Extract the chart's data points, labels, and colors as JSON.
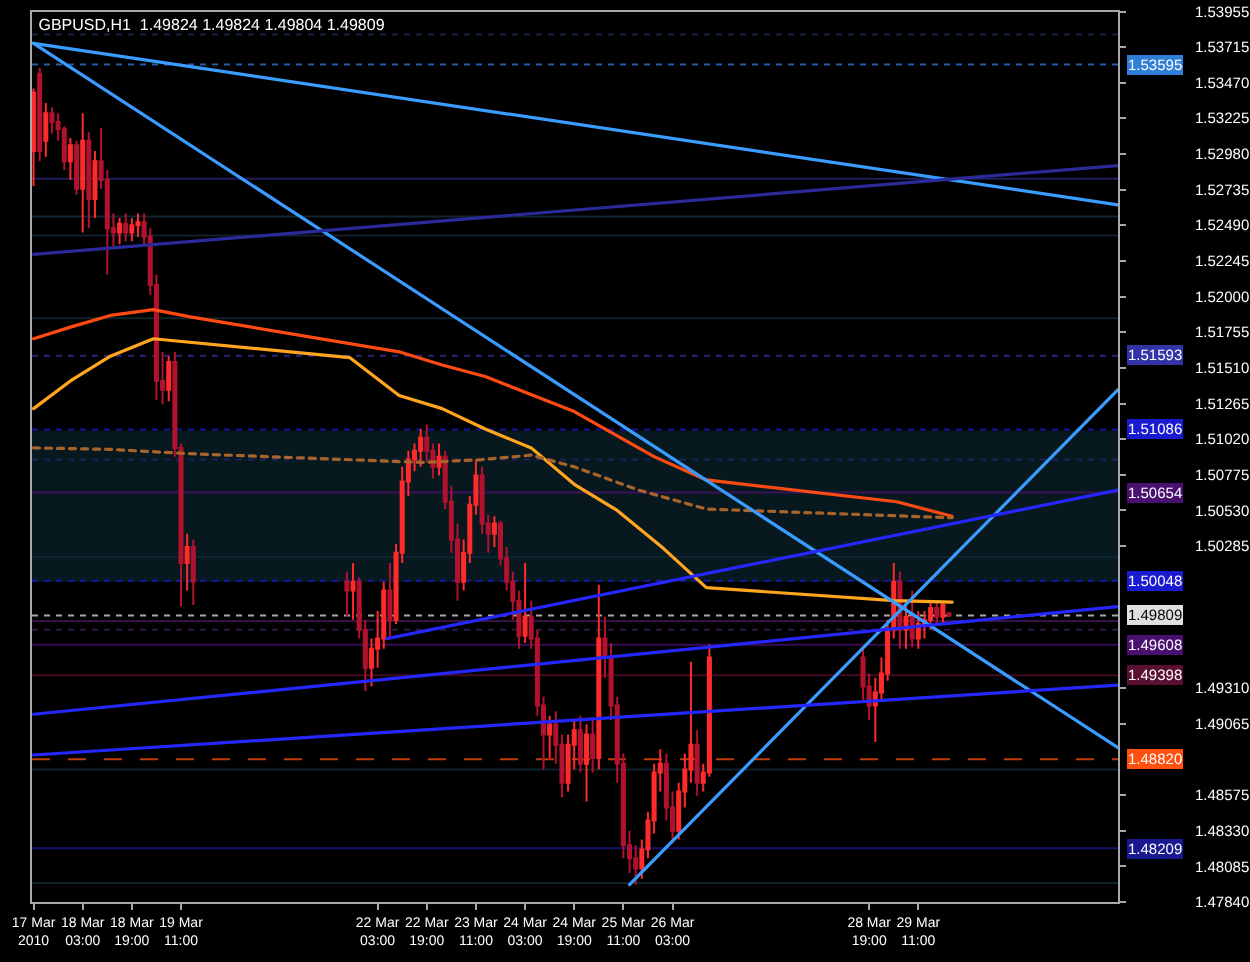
{
  "chart_data": {
    "type": "candlestick",
    "title": "GBPUSD,H1  1.49824 1.49824 1.49804 1.49809",
    "x": [
      "2010-03-17T11:00",
      "2010-03-17T13:00",
      "2010-03-17T15:00",
      "2010-03-17T17:00",
      "2010-03-17T19:00",
      "2010-03-17T21:00",
      "2010-03-17T23:00",
      "2010-03-18T01:00",
      "2010-03-18T03:00",
      "2010-03-18T05:00",
      "2010-03-18T07:00",
      "2010-03-18T09:00",
      "2010-03-18T11:00",
      "2010-03-18T13:00",
      "2010-03-18T15:00",
      "2010-03-18T17:00",
      "2010-03-18T19:00",
      "2010-03-18T21:00",
      "2010-03-18T23:00",
      "2010-03-19T01:00",
      "2010-03-19T03:00",
      "2010-03-19T05:00",
      "2010-03-19T07:00",
      "2010-03-19T09:00",
      "2010-03-19T11:00",
      "2010-03-19T13:00",
      "2010-03-19T15:00",
      "2010-03-21T17:00",
      "2010-03-21T19:00",
      "2010-03-21T21:00",
      "2010-03-21T23:00",
      "2010-03-22T01:00",
      "2010-03-22T03:00",
      "2010-03-22T05:00",
      "2010-03-22T07:00",
      "2010-03-22T09:00",
      "2010-03-22T11:00",
      "2010-03-22T13:00",
      "2010-03-22T15:00",
      "2010-03-22T17:00",
      "2010-03-22T19:00",
      "2010-03-22T21:00",
      "2010-03-22T23:00",
      "2010-03-23T01:00",
      "2010-03-23T03:00",
      "2010-03-23T05:00",
      "2010-03-23T07:00",
      "2010-03-23T09:00",
      "2010-03-23T11:00",
      "2010-03-23T13:00",
      "2010-03-23T15:00",
      "2010-03-23T17:00",
      "2010-03-23T19:00",
      "2010-03-23T21:00",
      "2010-03-23T23:00",
      "2010-03-24T01:00",
      "2010-03-24T03:00",
      "2010-03-24T05:00",
      "2010-03-24T07:00",
      "2010-03-24T09:00",
      "2010-03-24T11:00",
      "2010-03-24T13:00",
      "2010-03-24T15:00",
      "2010-03-24T17:00",
      "2010-03-24T19:00",
      "2010-03-24T21:00",
      "2010-03-24T23:00",
      "2010-03-25T01:00",
      "2010-03-25T03:00",
      "2010-03-25T05:00",
      "2010-03-25T07:00",
      "2010-03-25T09:00",
      "2010-03-25T11:00",
      "2010-03-25T13:00",
      "2010-03-25T15:00",
      "2010-03-25T17:00",
      "2010-03-25T19:00",
      "2010-03-25T21:00",
      "2010-03-25T23:00",
      "2010-03-26T01:00",
      "2010-03-26T03:00",
      "2010-03-26T05:00",
      "2010-03-26T07:00",
      "2010-03-26T09:00",
      "2010-03-26T11:00",
      "2010-03-26T13:00",
      "2010-03-26T15:00",
      "2010-03-28T17:00",
      "2010-03-28T19:00",
      "2010-03-28T21:00",
      "2010-03-28T23:00",
      "2010-03-29T01:00",
      "2010-03-29T03:00",
      "2010-03-29T05:00",
      "2010-03-29T07:00",
      "2010-03-29T09:00",
      "2010-03-29T11:00",
      "2010-03-29T13:00",
      "2010-03-29T15:00",
      "2010-03-29T17:00",
      "2010-03-29T19:00",
      "2010-03-29T21:00"
    ],
    "ohlc": [
      [
        1.53,
        1.5343,
        1.5276,
        1.534
      ],
      [
        1.5353,
        1.5357,
        1.5293,
        1.53
      ],
      [
        1.5307,
        1.5333,
        1.5296,
        1.5326
      ],
      [
        1.5326,
        1.533,
        1.5312,
        1.532
      ],
      [
        1.532,
        1.5326,
        1.5307,
        1.5315
      ],
      [
        1.5315,
        1.5317,
        1.5287,
        1.5293
      ],
      [
        1.5293,
        1.5309,
        1.528,
        1.5304
      ],
      [
        1.5304,
        1.5307,
        1.527,
        1.5274
      ],
      [
        1.5274,
        1.5326,
        1.5244,
        1.5307
      ],
      [
        1.5307,
        1.5313,
        1.5247,
        1.5267
      ],
      [
        1.5267,
        1.53,
        1.5254,
        1.5293
      ],
      [
        1.5293,
        1.5316,
        1.5274,
        1.528
      ],
      [
        1.528,
        1.5287,
        1.5215,
        1.5247
      ],
      [
        1.5247,
        1.5257,
        1.5234,
        1.5244
      ],
      [
        1.5244,
        1.5254,
        1.5236,
        1.525
      ],
      [
        1.525,
        1.5257,
        1.5238,
        1.5244
      ],
      [
        1.5244,
        1.5254,
        1.5238,
        1.5249
      ],
      [
        1.5249,
        1.5257,
        1.5241,
        1.5251
      ],
      [
        1.5251,
        1.5257,
        1.5236,
        1.5241
      ],
      [
        1.5241,
        1.5247,
        1.5201,
        1.5208
      ],
      [
        1.5208,
        1.5215,
        1.5129,
        1.5142
      ],
      [
        1.5142,
        1.5162,
        1.5126,
        1.5136
      ],
      [
        1.5136,
        1.5159,
        1.5128,
        1.5155
      ],
      [
        1.5155,
        1.5162,
        1.509,
        1.5096
      ],
      [
        1.5096,
        1.5099,
        1.4987,
        1.5017
      ],
      [
        1.5017,
        1.5037,
        1.4998,
        1.5028
      ],
      [
        1.5028,
        1.5033,
        1.4988,
        1.5004
      ],
      [
        1.5004,
        1.5011,
        1.498,
        1.4998
      ],
      [
        1.4998,
        1.5017,
        1.4978,
        1.5004
      ],
      [
        1.5004,
        1.5007,
        1.4965,
        1.4971
      ],
      [
        1.4971,
        1.4978,
        1.4929,
        1.4945
      ],
      [
        1.4945,
        1.4965,
        1.4932,
        1.4958
      ],
      [
        1.4958,
        1.4984,
        1.4945,
        1.4965
      ],
      [
        1.4965,
        1.5004,
        1.4958,
        1.4998
      ],
      [
        1.4998,
        1.5017,
        1.4965,
        1.4978
      ],
      [
        1.4978,
        1.503,
        1.4975,
        1.5024
      ],
      [
        1.5024,
        1.5083,
        1.5017,
        1.5073
      ],
      [
        1.5073,
        1.5094,
        1.5063,
        1.5088
      ],
      [
        1.5088,
        1.5099,
        1.508,
        1.5094
      ],
      [
        1.5094,
        1.5109,
        1.5083,
        1.5103
      ],
      [
        1.5103,
        1.5112,
        1.5086,
        1.5094
      ],
      [
        1.5094,
        1.5099,
        1.5075,
        1.5083
      ],
      [
        1.5083,
        1.5099,
        1.5077,
        1.509
      ],
      [
        1.509,
        1.5094,
        1.5054,
        1.5059
      ],
      [
        1.5059,
        1.507,
        1.5024,
        1.5033
      ],
      [
        1.5033,
        1.5044,
        1.4991,
        1.5004
      ],
      [
        1.5004,
        1.5033,
        1.4998,
        1.5024
      ],
      [
        1.5024,
        1.5063,
        1.5017,
        1.5057
      ],
      [
        1.5057,
        1.5088,
        1.505,
        1.5077
      ],
      [
        1.5077,
        1.5083,
        1.5037,
        1.5044
      ],
      [
        1.5044,
        1.505,
        1.5024,
        1.5037
      ],
      [
        1.5037,
        1.5049,
        1.5028,
        1.5044
      ],
      [
        1.5044,
        1.5046,
        1.5015,
        1.502
      ],
      [
        1.502,
        1.5028,
        1.4998,
        1.5004
      ],
      [
        1.5004,
        1.5011,
        1.4978,
        1.4991
      ],
      [
        1.4991,
        1.4998,
        1.4958,
        1.4967
      ],
      [
        1.4967,
        1.5017,
        1.4962,
        1.498
      ],
      [
        1.498,
        1.4991,
        1.4958,
        1.4965
      ],
      [
        1.4965,
        1.4971,
        1.4912,
        1.4919
      ],
      [
        1.4919,
        1.4925,
        1.4875,
        1.4899
      ],
      [
        1.4899,
        1.4912,
        1.4883,
        1.4906
      ],
      [
        1.4906,
        1.4915,
        1.4879,
        1.4892
      ],
      [
        1.4892,
        1.4899,
        1.4856,
        1.4866
      ],
      [
        1.4866,
        1.4899,
        1.486,
        1.4892
      ],
      [
        1.4892,
        1.4909,
        1.4875,
        1.4902
      ],
      [
        1.4902,
        1.4912,
        1.4873,
        1.4879
      ],
      [
        1.4879,
        1.4906,
        1.4853,
        1.4899
      ],
      [
        1.4899,
        1.4909,
        1.4873,
        1.4883
      ],
      [
        1.4883,
        1.5002,
        1.4875,
        1.4965
      ],
      [
        1.4965,
        1.498,
        1.4938,
        1.4952
      ],
      [
        1.4952,
        1.4962,
        1.4909,
        1.4919
      ],
      [
        1.4919,
        1.4925,
        1.4866,
        1.4879
      ],
      [
        1.4879,
        1.4886,
        1.4814,
        1.4823
      ],
      [
        1.4823,
        1.4833,
        1.4804,
        1.4814
      ],
      [
        1.4814,
        1.4823,
        1.4796,
        1.4807
      ],
      [
        1.4807,
        1.4827,
        1.48,
        1.482
      ],
      [
        1.482,
        1.4846,
        1.4814,
        1.484
      ],
      [
        1.484,
        1.4879,
        1.4831,
        1.4873
      ],
      [
        1.4873,
        1.4889,
        1.486,
        1.4879
      ],
      [
        1.4879,
        1.4886,
        1.484,
        1.4849
      ],
      [
        1.4849,
        1.486,
        1.4824,
        1.4833
      ],
      [
        1.4833,
        1.4866,
        1.4827,
        1.486
      ],
      [
        1.486,
        1.4886,
        1.4849,
        1.4875
      ],
      [
        1.4875,
        1.4949,
        1.4866,
        1.4892
      ],
      [
        1.4892,
        1.4902,
        1.4857,
        1.4866
      ],
      [
        1.4866,
        1.4879,
        1.486,
        1.4873
      ],
      [
        1.4873,
        1.4961,
        1.487,
        1.4952
      ],
      [
        1.4952,
        1.4958,
        1.4923,
        1.4932
      ],
      [
        1.4932,
        1.4941,
        1.4909,
        1.4919
      ],
      [
        1.4919,
        1.4938,
        1.4894,
        1.4928
      ],
      [
        1.4928,
        1.4952,
        1.4923,
        1.4941
      ],
      [
        1.4941,
        1.4978,
        1.4936,
        1.4971
      ],
      [
        1.4971,
        1.5017,
        1.4965,
        1.5004
      ],
      [
        1.5004,
        1.5011,
        1.4958,
        1.4971
      ],
      [
        1.4971,
        1.4991,
        1.4958,
        1.498
      ],
      [
        1.498,
        1.4998,
        1.4959,
        1.4965
      ],
      [
        1.4965,
        1.4984,
        1.4958,
        1.4975
      ],
      [
        1.4975,
        1.4984,
        1.4965,
        1.4978
      ],
      [
        1.4978,
        1.4991,
        1.4971,
        1.4986
      ],
      [
        1.4986,
        1.4991,
        1.4974,
        1.498
      ],
      [
        1.498,
        1.4991,
        1.4975,
        1.4988
      ],
      [
        1.49824,
        1.49824,
        1.49804,
        1.49809
      ]
    ],
    "colors": [
      "#ff2b2b",
      "#b3122e",
      "#ff2b2b",
      "#b3122e",
      "#b3122e",
      "#b3122e",
      "#ff2b2b",
      "#b3122e",
      "#ff2b2b",
      "#b3122e",
      "#ff2b2b",
      "#b3122e",
      "#b3122e",
      "#b3122e",
      "#ff2b2b",
      "#b3122e",
      "#ff2b2b",
      "#ff2b2b",
      "#b3122e",
      "#b3122e",
      "#b3122e",
      "#b3122e",
      "#ff2b2b",
      "#b3122e",
      "#b3122e",
      "#ff2b2b",
      "#b3122e",
      "#b3122e",
      "#ff2b2b",
      "#b3122e",
      "#b3122e",
      "#ff2b2b",
      "#ff2b2b",
      "#ff2b2b",
      "#b3122e",
      "#ff2b2b",
      "#ff2b2b",
      "#ff2b2b",
      "#ff2b2b",
      "#ff2b2b",
      "#b3122e",
      "#b3122e",
      "#ff2b2b",
      "#b3122e",
      "#b3122e",
      "#b3122e",
      "#ff2b2b",
      "#ff2b2b",
      "#ff2b2b",
      "#b3122e",
      "#b3122e",
      "#ff2b2b",
      "#b3122e",
      "#b3122e",
      "#b3122e",
      "#b3122e",
      "#ff2b2b",
      "#b3122e",
      "#b3122e",
      "#b3122e",
      "#ff2b2b",
      "#b3122e",
      "#b3122e",
      "#ff2b2b",
      "#ff2b2b",
      "#b3122e",
      "#ff2b2b",
      "#b3122e",
      "#ff2b2b",
      "#b3122e",
      "#b3122e",
      "#b3122e",
      "#b3122e",
      "#b3122e",
      "#b3122e",
      "#ff2b2b",
      "#ff2b2b",
      "#ff2b2b",
      "#ff2b2b",
      "#b3122e",
      "#b3122e",
      "#ff2b2b",
      "#ff2b2b",
      "#ff2b2b",
      "#b3122e",
      "#ff2b2b",
      "#ff2b2b",
      "#b3122e",
      "#b3122e",
      "#ff2b2b",
      "#ff2b2b",
      "#ff2b2b",
      "#ff2b2b",
      "#b3122e",
      "#ff2b2b",
      "#b3122e",
      "#ff2b2b",
      "#ff2b2b",
      "#ff2b2b",
      "#b3122e",
      "#ff2b2b",
      "#b3122e"
    ],
    "series": [
      {
        "type": "line",
        "color": "#ff4a14",
        "x": [
          "2010-03-17T11:00",
          "2010-03-17T23:00",
          "2010-03-18T12:00",
          "2010-03-19T02:00",
          "2010-03-19T14:00",
          "2010-03-22T10:00",
          "2010-03-23T00:00",
          "2010-03-23T14:00",
          "2010-03-24T19:00",
          "2010-03-25T21:00",
          "2010-03-26T14:00",
          "2010-03-29T04:00",
          "2010-03-29T22:00"
        ],
        "values": [
          1.5171,
          1.5179,
          1.5187,
          1.5191,
          1.5186,
          1.5162,
          1.5153,
          1.5145,
          1.5121,
          1.509,
          1.5074,
          1.5059,
          1.5049
        ]
      },
      {
        "type": "line",
        "color": "#ffa51e",
        "x": [
          "2010-03-17T11:00",
          "2010-03-17T23:00",
          "2010-03-18T12:00",
          "2010-03-19T02:00",
          "2010-03-21T18:00",
          "2010-03-22T10:00",
          "2010-03-23T00:00",
          "2010-03-23T14:00",
          "2010-03-24T05:00",
          "2010-03-24T19:00",
          "2010-03-25T09:00",
          "2010-03-26T00:00",
          "2010-03-26T14:00",
          "2010-03-29T03:00",
          "2010-03-29T22:00"
        ],
        "values": [
          1.5123,
          1.5142,
          1.5159,
          1.5171,
          1.5158,
          1.5132,
          1.5123,
          1.5109,
          1.5096,
          1.5071,
          1.5053,
          1.5027,
          1.5,
          1.4991,
          1.499
        ]
      },
      {
        "type": "line",
        "color": "#a8642a",
        "line_style": "dotted",
        "x": [
          "2010-03-17T11:00",
          "2010-03-18T12:00",
          "2010-03-19T14:00",
          "2010-03-22T18:00",
          "2010-03-23T13:00",
          "2010-03-24T05:00",
          "2010-03-24T19:00",
          "2010-03-25T16:00",
          "2010-03-26T14:00",
          "2010-03-29T22:00"
        ],
        "values": [
          1.5096,
          1.5095,
          1.5092,
          1.5086,
          1.5088,
          1.5091,
          1.5083,
          1.5067,
          1.5054,
          1.5048
        ]
      },
      {
        "type": "line",
        "color": "#3a9cff",
        "x": [
          "2010-03-17T11:00",
          "2010-04-01T04:00"
        ],
        "values": [
          1.5374,
          1.5263
        ]
      },
      {
        "type": "line",
        "color": "#3a9cff",
        "x": [
          "2010-03-17T11:00",
          "2010-04-01T04:00"
        ],
        "values": [
          1.5374,
          1.489
        ]
      },
      {
        "type": "line",
        "color": "#3a9cff",
        "x": [
          "2010-03-25T13:00",
          "2010-04-01T04:00"
        ],
        "values": [
          1.4796,
          1.5136
        ]
      },
      {
        "type": "line",
        "color": "#2626ff",
        "x": [
          "2010-03-17T11:00",
          "2010-04-01T04:00"
        ],
        "values": [
          1.4913,
          1.4987
        ]
      },
      {
        "type": "line",
        "color": "#2626ff",
        "x": [
          "2010-03-17T11:00",
          "2010-04-01T04:00"
        ],
        "values": [
          1.4885,
          1.4933
        ]
      },
      {
        "type": "line",
        "color": "#2626ff",
        "x": [
          "2010-03-22T06:00",
          "2010-04-01T04:00"
        ],
        "values": [
          1.4965,
          1.5067
        ]
      },
      {
        "type": "line",
        "color": "#2a2a9a",
        "x": [
          "2010-03-17T11:00",
          "2010-04-01T04:00"
        ],
        "values": [
          1.5229,
          1.529
        ]
      }
    ],
    "bands": [
      {
        "axis": "y",
        "from": 1.5004,
        "to": 1.5108,
        "color": "#0c2a34"
      }
    ],
    "ref_lines": [
      {
        "axis": "y",
        "value": 1.538,
        "color": "#1c2a5a",
        "line_style": "dotted"
      },
      {
        "axis": "y",
        "value": 1.53595,
        "label": "1.53595",
        "color": "#2f7fd8",
        "line_style": "dotted"
      },
      {
        "axis": "y",
        "value": 1.5281,
        "color": "#28287a",
        "line_style": "solid"
      },
      {
        "axis": "y",
        "value": 1.5255,
        "color": "#1a3040",
        "line_style": "solid"
      },
      {
        "axis": "y",
        "value": 1.5242,
        "color": "#1a2a3a",
        "line_style": "solid"
      },
      {
        "axis": "y",
        "value": 1.5185,
        "color": "#103038",
        "line_style": "solid"
      },
      {
        "axis": "y",
        "value": 1.51593,
        "label": "1.51593",
        "color": "#3333a8",
        "line_style": "dotted"
      },
      {
        "axis": "y",
        "value": 1.51086,
        "label": "1.51086",
        "color": "#1a1ad0",
        "line_style": "dotted"
      },
      {
        "axis": "y",
        "value": 1.5088,
        "color": "#202878",
        "line_style": "dotted"
      },
      {
        "axis": "y",
        "value": 1.50654,
        "label": "1.50654",
        "color": "#4a1070",
        "line_style": "solid"
      },
      {
        "axis": "y",
        "value": 1.5021,
        "color": "#102a3a",
        "line_style": "solid"
      },
      {
        "axis": "y",
        "value": 1.50048,
        "label": "1.50048",
        "color": "#1a1ad0",
        "line_style": "dotted"
      },
      {
        "axis": "y",
        "value": 1.49809,
        "label": "1.49809",
        "color": "#e0e0e0",
        "line_style": "dotted"
      },
      {
        "axis": "y",
        "value": 1.4977,
        "color": "#4a1a5a",
        "line_style": "solid"
      },
      {
        "axis": "y",
        "value": 1.4971,
        "color": "#402060",
        "line_style": "dotted"
      },
      {
        "axis": "y",
        "value": 1.49608,
        "label": "1.49608",
        "color": "#4a1070",
        "line_style": "solid"
      },
      {
        "axis": "y",
        "value": 1.49398,
        "label": "1.49398",
        "color": "#5a1030",
        "line_style": "solid"
      },
      {
        "axis": "y",
        "value": 1.4882,
        "label": "1.48820",
        "color": "#ff5010",
        "line_style": "dashed"
      },
      {
        "axis": "y",
        "value": 1.4875,
        "color": "#103040",
        "line_style": "solid"
      },
      {
        "axis": "y",
        "value": 1.48209,
        "label": "1.48209",
        "color": "#1a1a90",
        "line_style": "solid"
      },
      {
        "axis": "y",
        "value": 1.4797,
        "color": "#103038",
        "line_style": "solid"
      }
    ],
    "xlim": [
      "2010-03-17T10:30",
      "2010-04-01T04:00"
    ],
    "xticks": [
      {
        "value": "2010-03-17T11:00",
        "label": "17 Mar 2010"
      },
      {
        "value": "2010-03-18T03:00",
        "label": "18 Mar 03:00"
      },
      {
        "value": "2010-03-18T19:00",
        "label": "18 Mar 19:00"
      },
      {
        "value": "2010-03-19T11:00",
        "label": "19 Mar 11:00"
      },
      {
        "value": "2010-03-22T03:00",
        "label": "22 Mar 03:00"
      },
      {
        "value": "2010-03-22T19:00",
        "label": "22 Mar 19:00"
      },
      {
        "value": "2010-03-23T11:00",
        "label": "23 Mar 11:00"
      },
      {
        "value": "2010-03-24T03:00",
        "label": "24 Mar 03:00"
      },
      {
        "value": "2010-03-24T19:00",
        "label": "24 Mar 19:00"
      },
      {
        "value": "2010-03-25T11:00",
        "label": "25 Mar 11:00"
      },
      {
        "value": "2010-03-26T03:00",
        "label": "26 Mar 03:00"
      },
      {
        "value": "2010-03-28T19:00",
        "label": "28 Mar 19:00"
      },
      {
        "value": "2010-03-29T11:00",
        "label": "29 Mar 11:00"
      }
    ],
    "ylim": [
      1.4784,
      1.53955
    ],
    "yticks": [
      1.53955,
      1.53715,
      {
        "value": 1.5347,
        "label": "1.53470"
      },
      1.53225,
      {
        "value": 1.5298,
        "label": "1.52980"
      },
      1.52735,
      {
        "value": 1.5249,
        "label": "1.52490"
      },
      1.52245,
      {
        "value": 1.52,
        "label": "1.52000"
      },
      1.51755,
      {
        "value": 1.5151,
        "label": "1.51510"
      },
      1.51265,
      {
        "value": 1.5102,
        "label": "1.51020"
      },
      1.50775,
      {
        "value": 1.5053,
        "label": "1.50530"
      },
      1.50285,
      {
        "value": 1.4931,
        "label": "1.49310"
      },
      1.49065,
      1.48575,
      {
        "value": 1.4833,
        "label": "1.48330"
      },
      1.48085,
      {
        "value": 1.4784,
        "label": "1.47840"
      }
    ]
  }
}
